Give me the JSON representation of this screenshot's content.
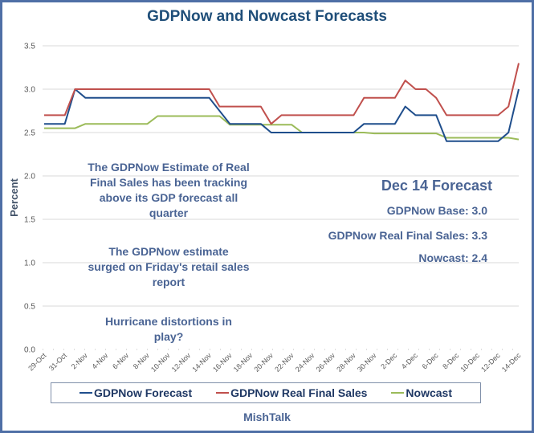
{
  "chart_data": {
    "type": "line",
    "title": "GDPNow and Nowcast Forecasts",
    "xlabel": "",
    "ylabel": "Percent",
    "ylim": [
      0,
      3.5
    ],
    "yticks": [
      "0.0",
      "0.5",
      "1.0",
      "1.5",
      "2.0",
      "2.5",
      "3.0",
      "3.5"
    ],
    "grid": true,
    "legend_position": "bottom",
    "x": [
      "29-Oct",
      "30-Oct",
      "31-Oct",
      "1-Nov",
      "2-Nov",
      "3-Nov",
      "4-Nov",
      "5-Nov",
      "6-Nov",
      "7-Nov",
      "8-Nov",
      "9-Nov",
      "10-Nov",
      "11-Nov",
      "12-Nov",
      "13-Nov",
      "14-Nov",
      "15-Nov",
      "16-Nov",
      "17-Nov",
      "18-Nov",
      "19-Nov",
      "20-Nov",
      "21-Nov",
      "22-Nov",
      "23-Nov",
      "24-Nov",
      "25-Nov",
      "26-Nov",
      "27-Nov",
      "28-Nov",
      "29-Nov",
      "30-Nov",
      "1-Dec",
      "2-Dec",
      "3-Dec",
      "4-Dec",
      "5-Dec",
      "6-Dec",
      "7-Dec",
      "8-Dec",
      "9-Dec",
      "10-Dec",
      "11-Dec",
      "12-Dec",
      "13-Dec",
      "14-Dec"
    ],
    "xtick_labels": [
      "29-Oct",
      "31-Oct",
      "2-Nov",
      "4-Nov",
      "6-Nov",
      "8-Nov",
      "10-Nov",
      "12-Nov",
      "14-Nov",
      "16-Nov",
      "18-Nov",
      "20-Nov",
      "22-Nov",
      "24-Nov",
      "26-Nov",
      "28-Nov",
      "30-Nov",
      "2-Dec",
      "4-Dec",
      "6-Dec",
      "8-Dec",
      "10-Dec",
      "12-Dec",
      "14-Dec"
    ],
    "series": [
      {
        "name": "GDPNow Forecast",
        "color": "#1f4e8c",
        "values": [
          2.6,
          2.6,
          2.6,
          3.0,
          2.9,
          2.9,
          2.9,
          2.9,
          2.9,
          2.9,
          2.9,
          2.9,
          2.9,
          2.9,
          2.9,
          2.9,
          2.9,
          2.75,
          2.6,
          2.6,
          2.6,
          2.6,
          2.5,
          2.5,
          2.5,
          2.5,
          2.5,
          2.5,
          2.5,
          2.5,
          2.5,
          2.6,
          2.6,
          2.6,
          2.6,
          2.8,
          2.7,
          2.7,
          2.7,
          2.4,
          2.4,
          2.4,
          2.4,
          2.4,
          2.4,
          2.5,
          3.0
        ]
      },
      {
        "name": "GDPNow Real Final Sales",
        "color": "#c0504d",
        "values": [
          2.7,
          2.7,
          2.7,
          3.0,
          3.0,
          3.0,
          3.0,
          3.0,
          3.0,
          3.0,
          3.0,
          3.0,
          3.0,
          3.0,
          3.0,
          3.0,
          3.0,
          2.8,
          2.8,
          2.8,
          2.8,
          2.8,
          2.6,
          2.7,
          2.7,
          2.7,
          2.7,
          2.7,
          2.7,
          2.7,
          2.7,
          2.9,
          2.9,
          2.9,
          2.9,
          3.1,
          3.0,
          3.0,
          2.9,
          2.7,
          2.7,
          2.7,
          2.7,
          2.7,
          2.7,
          2.8,
          3.3
        ]
      },
      {
        "name": "Nowcast",
        "color": "#9bbb59",
        "values": [
          2.55,
          2.55,
          2.55,
          2.55,
          2.6,
          2.6,
          2.6,
          2.6,
          2.6,
          2.6,
          2.6,
          2.69,
          2.69,
          2.69,
          2.69,
          2.69,
          2.69,
          2.69,
          2.59,
          2.59,
          2.59,
          2.59,
          2.59,
          2.59,
          2.59,
          2.5,
          2.5,
          2.5,
          2.5,
          2.5,
          2.5,
          2.5,
          2.49,
          2.49,
          2.49,
          2.49,
          2.49,
          2.49,
          2.49,
          2.44,
          2.44,
          2.44,
          2.44,
          2.44,
          2.44,
          2.44,
          2.42
        ]
      }
    ],
    "annotations": [
      "The GDPNow Estimate of Real Final Sales has been tracking above its GDP forecast all quarter",
      "The GDPNow estimate surged on Friday's retail sales report",
      "Hurricane distortions in play?"
    ]
  },
  "annotations": {
    "tracking": [
      "The GDPNow Estimate of Real",
      "Final Sales has been tracking",
      "above its GDP forecast all",
      "quarter"
    ],
    "surged": [
      "The GDPNow estimate",
      "surged on Friday's retail sales",
      "report"
    ],
    "hurricane": [
      "Hurricane distortions in",
      "play?"
    ]
  },
  "forecast_box": {
    "heading": "Dec 14 Forecast",
    "items": [
      "GDPNow Base: 3.0",
      "GDPNow Real Final Sales: 3.3",
      "Nowcast: 2.4"
    ]
  },
  "legend": [
    {
      "label": "GDPNow Forecast",
      "color": "#1f4e8c"
    },
    {
      "label": "GDPNow Real Final Sales",
      "color": "#c0504d"
    },
    {
      "label": "Nowcast",
      "color": "#9bbb59"
    }
  ],
  "source": "MishTalk",
  "colors": {
    "frame": "#4f6fa6",
    "title": "#1f4e79",
    "annotation_text": "#4a6494",
    "gridline": "#d9d9d9"
  }
}
